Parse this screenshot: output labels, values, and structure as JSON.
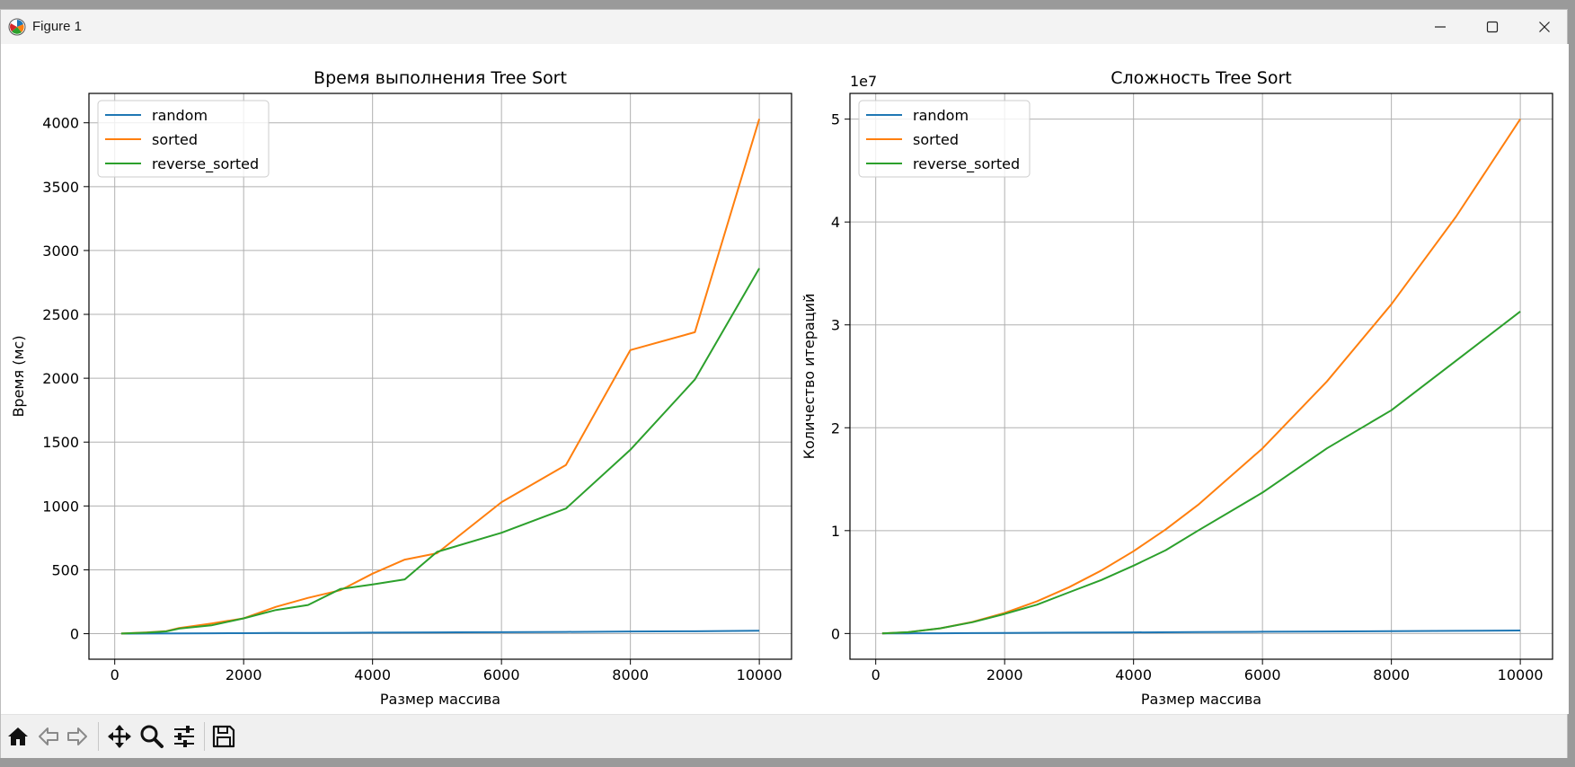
{
  "window": {
    "title": "Figure 1",
    "icons": {
      "app": "matplotlib-icon",
      "minimize": "minimize-icon",
      "maximize": "maximize-icon",
      "close": "close-icon"
    }
  },
  "toolbar": {
    "buttons": [
      "home-icon",
      "back-arrow-icon",
      "forward-arrow-icon",
      "pan-icon",
      "zoom-icon",
      "configure-subplots-icon",
      "save-icon"
    ]
  },
  "colors": {
    "random": "#1f77b4",
    "sorted": "#ff7f0e",
    "reverse_sorted": "#2ca02c"
  },
  "chart_data": [
    {
      "type": "line",
      "title": "Время выполнения Tree Sort",
      "xlabel": "Размер массива",
      "ylabel": "Время (мс)",
      "offset_text": "",
      "xlim": [
        -400,
        10500
      ],
      "ylim": [
        -200,
        4230
      ],
      "xticks": [
        0,
        2000,
        4000,
        6000,
        8000,
        10000
      ],
      "xtick_labels": [
        "0",
        "2000",
        "4000",
        "6000",
        "8000",
        "10000"
      ],
      "yticks": [
        0,
        500,
        1000,
        1500,
        2000,
        2500,
        3000,
        3500,
        4000
      ],
      "ytick_labels": [
        "0",
        "500",
        "1000",
        "1500",
        "2000",
        "2500",
        "3000",
        "3500",
        "4000"
      ],
      "grid": true,
      "legend": "upper-left",
      "series": [
        {
          "name": "random",
          "color": "#1f77b4",
          "x": [
            100,
            500,
            1000,
            1500,
            2000,
            2500,
            3000,
            3500,
            4000,
            4500,
            5000,
            6000,
            7000,
            8000,
            9000,
            10000
          ],
          "values": [
            0.5,
            1,
            2,
            3,
            4,
            5,
            6,
            7,
            8,
            9,
            10,
            12,
            14,
            17,
            19,
            23
          ]
        },
        {
          "name": "sorted",
          "color": "#ff7f0e",
          "x": [
            100,
            500,
            800,
            1000,
            1500,
            2000,
            2500,
            3000,
            3500,
            4000,
            4500,
            5000,
            6000,
            7000,
            8000,
            9000,
            10000
          ],
          "values": [
            1,
            10,
            20,
            45,
            80,
            120,
            210,
            280,
            340,
            470,
            580,
            630,
            1030,
            1320,
            2220,
            2360,
            4030
          ]
        },
        {
          "name": "reverse_sorted",
          "color": "#2ca02c",
          "x": [
            100,
            500,
            800,
            1000,
            1500,
            2000,
            2500,
            3000,
            3500,
            4000,
            4500,
            5000,
            6000,
            7000,
            8000,
            9000,
            10000
          ],
          "values": [
            1,
            8,
            18,
            40,
            65,
            120,
            185,
            225,
            350,
            385,
            425,
            640,
            790,
            980,
            1440,
            1990,
            2860
          ]
        }
      ]
    },
    {
      "type": "line",
      "title": "Сложность Tree Sort",
      "xlabel": "Размер массива",
      "ylabel": "Количество итераций",
      "offset_text": "1e7",
      "xlim": [
        -400,
        10500
      ],
      "ylim": [
        -2500000,
        52500000
      ],
      "xticks": [
        0,
        2000,
        4000,
        6000,
        8000,
        10000
      ],
      "xtick_labels": [
        "0",
        "2000",
        "4000",
        "6000",
        "8000",
        "10000"
      ],
      "yticks": [
        0,
        10000000,
        20000000,
        30000000,
        40000000,
        50000000
      ],
      "ytick_labels": [
        "0",
        "1",
        "2",
        "3",
        "4",
        "5"
      ],
      "grid": true,
      "legend": "upper-left",
      "series": [
        {
          "name": "random",
          "color": "#1f77b4",
          "x": [
            100,
            500,
            1000,
            1500,
            2000,
            3000,
            4000,
            5000,
            6000,
            7000,
            8000,
            9000,
            10000
          ],
          "values": [
            2000,
            10000,
            25000,
            40000,
            55000,
            85000,
            110000,
            140000,
            170000,
            200000,
            230000,
            260000,
            290000
          ]
        },
        {
          "name": "sorted",
          "color": "#ff7f0e",
          "x": [
            100,
            500,
            1000,
            1500,
            2000,
            2500,
            3000,
            3500,
            4000,
            4500,
            5000,
            6000,
            7000,
            8000,
            9000,
            10000
          ],
          "values": [
            5000,
            125000,
            500000,
            1125000,
            2000000,
            3125000,
            4500000,
            6125000,
            8000000,
            10125000,
            12500000,
            18000000,
            24500000,
            32000000,
            40500000,
            50000000
          ]
        },
        {
          "name": "reverse_sorted",
          "color": "#2ca02c",
          "x": [
            100,
            500,
            1000,
            1500,
            2000,
            2500,
            3000,
            3500,
            4000,
            4500,
            5000,
            6000,
            7000,
            8000,
            9000,
            10000
          ],
          "values": [
            5000,
            130000,
            500000,
            1100000,
            1900000,
            2800000,
            4000000,
            5200000,
            6600000,
            8100000,
            10000000,
            13700000,
            18000000,
            21700000,
            26500000,
            31300000
          ]
        }
      ]
    }
  ]
}
